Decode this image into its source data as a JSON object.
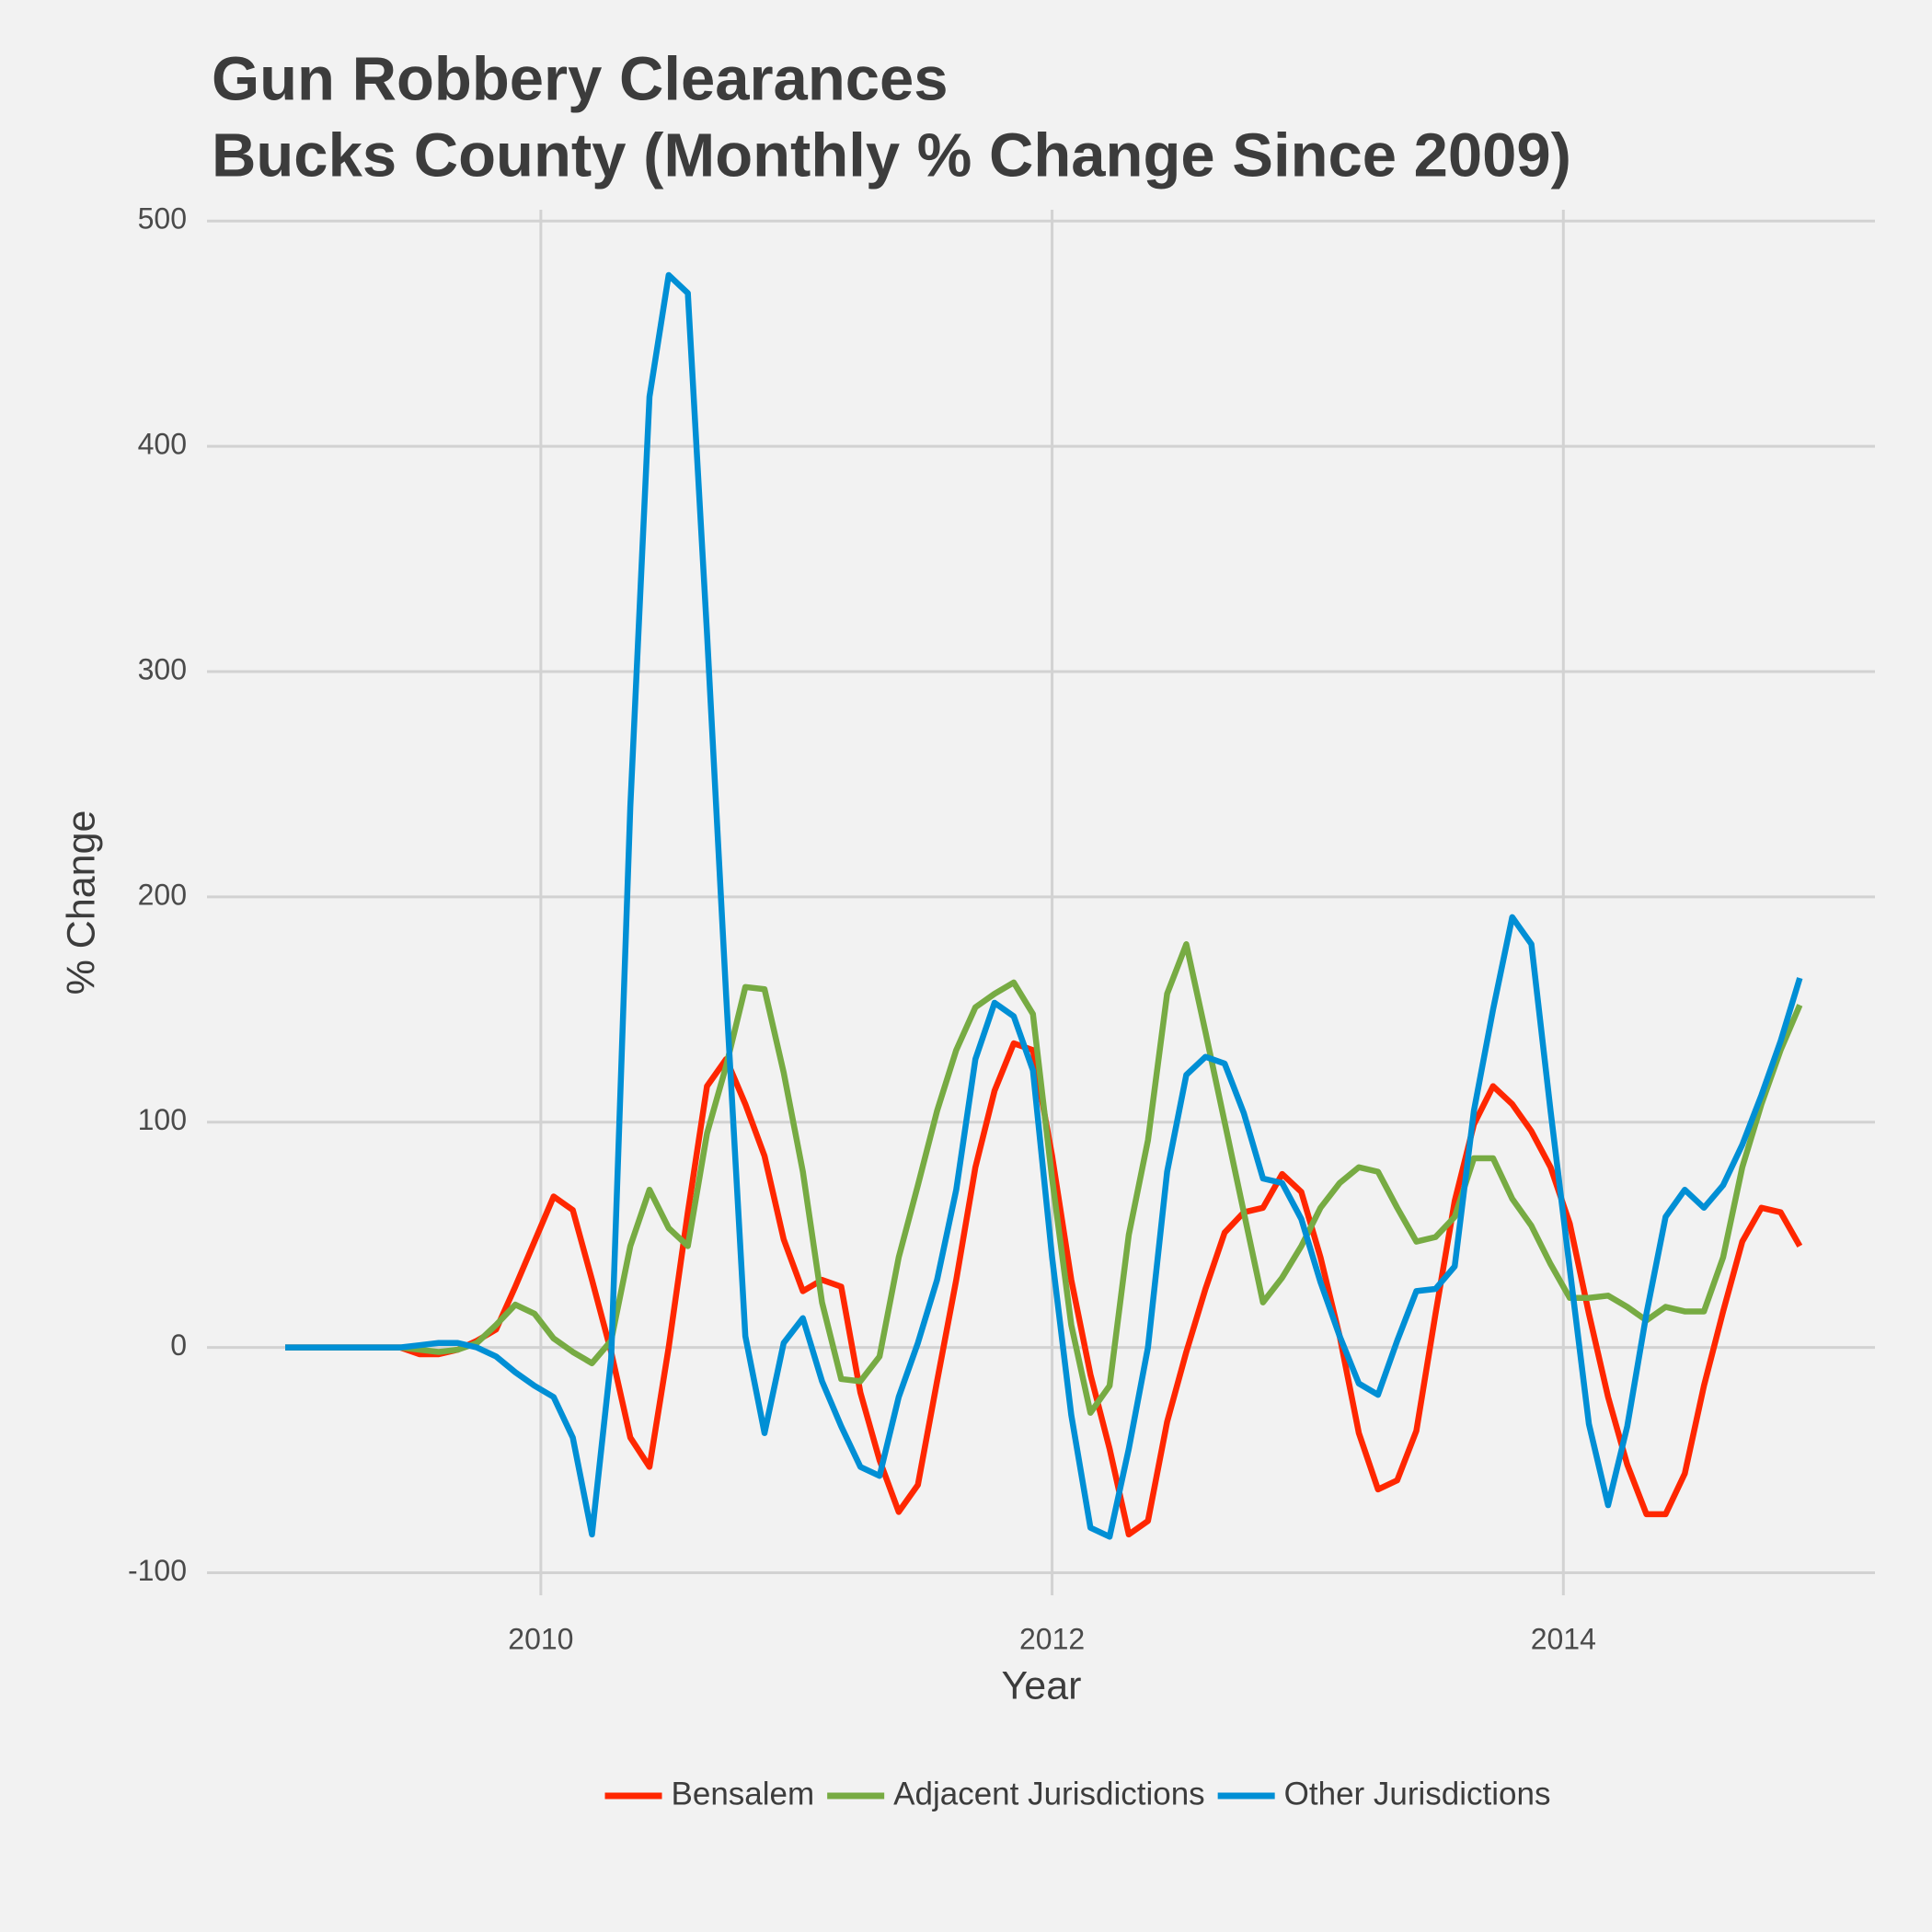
{
  "chart_data": {
    "type": "line",
    "title": "Gun Robbery Clearances",
    "subtitle": "Bucks County (Monthly % Change Since 2009)",
    "x_label": "Year",
    "y_label": "% Change",
    "x": [
      2009,
      2009.075,
      2009.15,
      2009.225,
      2009.3,
      2009.375,
      2009.45,
      2009.525,
      2009.6,
      2009.675,
      2009.75,
      2009.825,
      2009.9,
      2009.975,
      2010.05,
      2010.125,
      2010.2,
      2010.275,
      2010.35,
      2010.425,
      2010.5,
      2010.575,
      2010.65,
      2010.725,
      2010.8,
      2010.875,
      2010.95,
      2011.025,
      2011.1,
      2011.175,
      2011.25,
      2011.325,
      2011.4,
      2011.475,
      2011.55,
      2011.625,
      2011.7,
      2011.775,
      2011.85,
      2011.925,
      2012,
      2012.075,
      2012.15,
      2012.225,
      2012.3,
      2012.375,
      2012.45,
      2012.525,
      2012.6,
      2012.675,
      2012.75,
      2012.825,
      2012.9,
      2012.975,
      2013.05,
      2013.125,
      2013.2,
      2013.275,
      2013.35,
      2013.425,
      2013.5,
      2013.575,
      2013.65,
      2013.725,
      2013.8,
      2013.875,
      2013.95,
      2014.025,
      2014.1,
      2014.175,
      2014.25,
      2014.325,
      2014.4,
      2014.475,
      2014.55,
      2014.625,
      2014.7,
      2014.775,
      2014.85,
      2014.925
    ],
    "series": [
      {
        "name": "Bensalem",
        "color": "#ff2700",
        "values": [
          0,
          0,
          0,
          0,
          0,
          0,
          0,
          -3,
          -3,
          -1,
          3,
          8,
          27,
          47,
          67,
          61,
          30,
          -2,
          -40,
          -53,
          0,
          60,
          116,
          128,
          108,
          85,
          48,
          25,
          30,
          27,
          -20,
          -50,
          -73,
          -61,
          -15,
          30,
          80,
          114,
          135,
          132,
          85,
          30,
          -12,
          -45,
          -83,
          -77,
          -33,
          -2,
          26,
          51,
          60,
          62,
          77,
          69,
          40,
          5,
          -38,
          -63,
          -59,
          -37,
          15,
          65,
          99,
          116,
          108,
          96,
          80,
          55,
          15,
          -22,
          -52,
          -74,
          -74,
          -56,
          -17,
          16,
          47,
          62,
          60,
          45
        ]
      },
      {
        "name": "Adjacent Jurisdictions",
        "color": "#77ab43",
        "values": [
          0,
          0,
          0,
          0,
          0,
          0,
          0,
          -1,
          -2,
          -1,
          2,
          10,
          19,
          15,
          4,
          -2,
          -7,
          3,
          45,
          70,
          53,
          45,
          95,
          125,
          160,
          159,
          122,
          78,
          20,
          -14,
          -15,
          -4,
          40,
          72,
          105,
          132,
          151,
          157,
          162,
          148,
          75,
          10,
          -29,
          -17,
          50,
          92,
          157,
          179,
          140,
          100,
          60,
          20,
          31,
          45,
          62,
          73,
          80,
          78,
          62,
          47,
          49,
          58,
          84,
          84,
          66,
          54,
          37,
          22,
          22,
          23,
          18,
          12,
          18,
          16,
          16,
          40,
          80,
          108,
          132,
          152
        ]
      },
      {
        "name": "Other Jurisdictions",
        "color": "#008fd5",
        "values": [
          0,
          0,
          0,
          0,
          0,
          0,
          0,
          1,
          2,
          2,
          0,
          -4,
          -11,
          -17,
          -22,
          -40,
          -83,
          -5,
          240,
          422,
          476,
          468,
          317,
          156,
          5,
          -38,
          2,
          13,
          -15,
          -35,
          -53,
          -57,
          -22,
          2,
          30,
          70,
          128,
          153,
          147,
          123,
          40,
          -30,
          -80,
          -84,
          -45,
          0,
          78,
          121,
          129,
          126,
          104,
          75,
          73,
          57,
          29,
          5,
          -16,
          -21,
          3,
          25,
          26,
          36,
          105,
          150,
          191,
          179,
          105,
          35,
          -34,
          -70,
          -35,
          15,
          58,
          70,
          62,
          72,
          90,
          112,
          136,
          164
        ]
      }
    ],
    "xlim": [
      2008.694,
      2015.219
    ],
    "xticks": [
      2010,
      2012,
      2014
    ],
    "ylim": [
      -110,
      505
    ],
    "yticks": [
      -100,
      0,
      100,
      200,
      300,
      400,
      500
    ],
    "grid": true,
    "legend": "bottom"
  }
}
